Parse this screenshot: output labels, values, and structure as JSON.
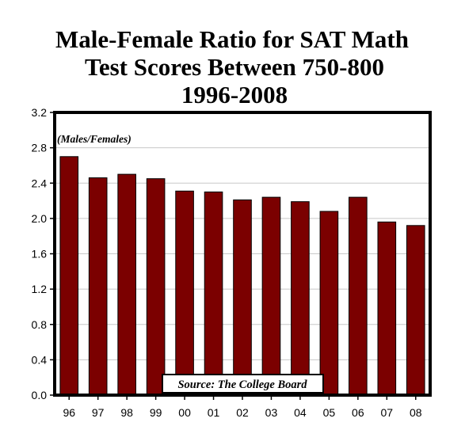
{
  "chart_data": {
    "type": "bar",
    "title_lines": [
      "Male-Female Ratio for SAT Math",
      "Test Scores Between 750-800",
      "1996-2008"
    ],
    "categories": [
      "96",
      "97",
      "98",
      "99",
      "00",
      "01",
      "02",
      "03",
      "04",
      "05",
      "06",
      "07",
      "08"
    ],
    "values": [
      2.7,
      2.46,
      2.5,
      2.45,
      2.31,
      2.3,
      2.21,
      2.24,
      2.19,
      2.08,
      2.24,
      1.96,
      1.92
    ],
    "ylim": [
      0,
      3.2
    ],
    "ytick_labels": [
      "0.0",
      "0.4",
      "0.8",
      "1.2",
      "1.6",
      "2.0",
      "2.4",
      "2.8",
      "3.2"
    ],
    "annotation": "(Males/Females)",
    "source": "Source: The College Board",
    "grid": true,
    "colors": {
      "bar": "#7b0000",
      "bar_edge": "#000000",
      "grid": "#c8c8c8",
      "frame": "#000000",
      "background": "#ffffff"
    }
  }
}
